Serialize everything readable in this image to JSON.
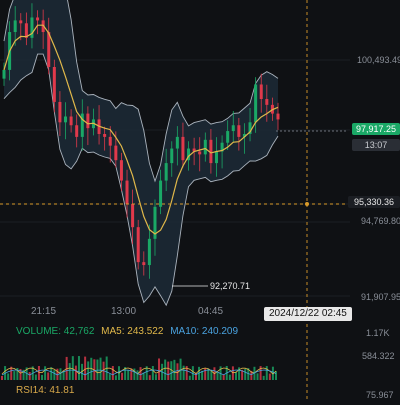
{
  "price_axis": {
    "labels": [
      "100,493.49",
      "94,769.80",
      "91,907.95"
    ],
    "last_price": "97,917.25",
    "countdown": "13:07",
    "crosshair_price": "95,330.36"
  },
  "time_axis": {
    "labels": [
      "21:15",
      "13:00",
      "04:45"
    ],
    "crosshair_time": "2024/12/22 02:45"
  },
  "annotations": {
    "low_label": "92,270.71"
  },
  "volume": {
    "label": "VOLUME: 42,762",
    "ma5": "MA5: 243.522",
    "ma10": "MA10: 240.209",
    "axis_labels": [
      "1.17K",
      "584.322"
    ]
  },
  "rsi": {
    "label": "RSI14: 41.81",
    "axis_label": "75.967"
  },
  "colors": {
    "background": "#0f1114",
    "band_fill": "#1c2a36",
    "band_line": "#aab3bd",
    "ma_line": "#e0b84a",
    "up": "#1aa866",
    "down": "#e0394b",
    "last_price_bg": "#1aa866",
    "crosshair": "#d89a2a",
    "vol_text": "#1aa866",
    "ma5_text": "#e0b84a",
    "ma10_text": "#4aa3e0"
  },
  "chart_data": {
    "type": "candlestick",
    "series": [
      {
        "name": "",
        "values": [
          99600,
          100900,
          101300,
          101200,
          100700,
          101400,
          101300,
          100900,
          99700,
          98500,
          97800,
          98000,
          97700,
          97300,
          98100,
          97600,
          97900,
          97400,
          97300,
          97000,
          96500,
          95800,
          95000,
          94200,
          93000,
          92900,
          93800,
          94900,
          95800,
          96400,
          96900,
          97300,
          96500,
          96900,
          96800,
          96700,
          97200,
          96400,
          96800,
          97100,
          97500,
          97700,
          97300,
          97400,
          97800,
          99100,
          98600,
          98400,
          98100,
          97900
        ]
      }
    ]
  }
}
